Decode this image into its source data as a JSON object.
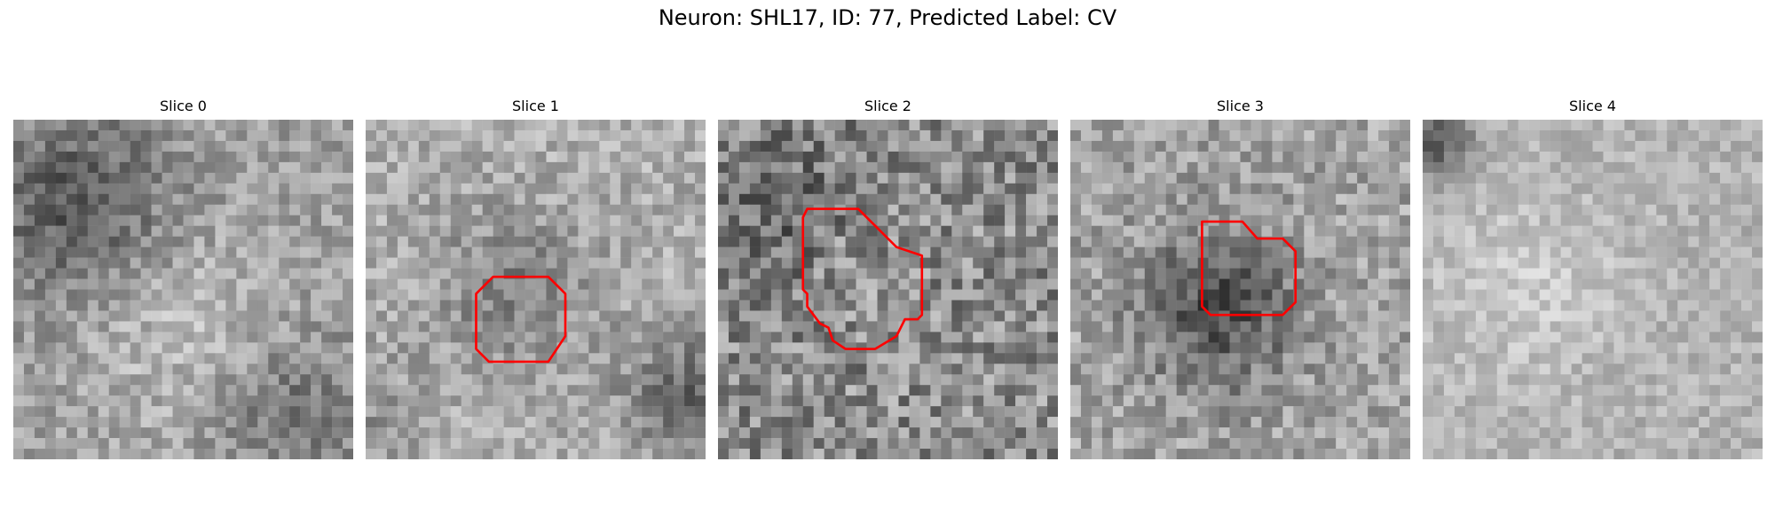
{
  "figure": {
    "title": "Neuron: SHL17, ID: 77, Predicted Label: CV",
    "roi_color": "#ff0000"
  },
  "panels": [
    {
      "title": "Slice 0",
      "has_roi": false
    },
    {
      "title": "Slice 1",
      "has_roi": true
    },
    {
      "title": "Slice 2",
      "has_roi": true
    },
    {
      "title": "Slice 3",
      "has_roi": true
    },
    {
      "title": "Slice 4",
      "has_roi": false
    }
  ]
}
